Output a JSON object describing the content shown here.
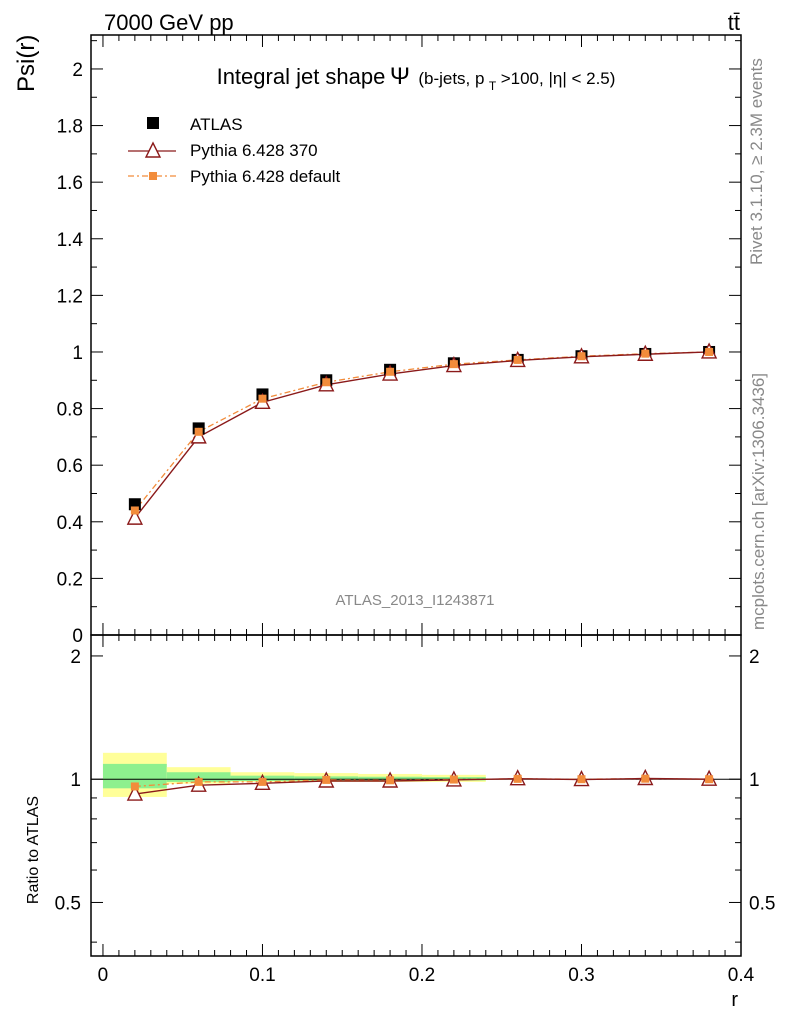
{
  "header": {
    "energy_label": "7000 GeV pp",
    "process_label": "tt̄",
    "rivet_label": "Rivet 3.1.10, ≥ 2.3M events",
    "mcplots_label": "mcplots.cern.ch [arXiv:1306.3436]",
    "analysis_id": "ATLAS_2013_I1243871"
  },
  "chart_data": [
    {
      "type": "scatter",
      "panel": "main",
      "title_main": "Integral jet shape",
      "title_symbol": "Ψ",
      "title_detail_a": "(b-jets, p",
      "title_detail_sub": "T",
      "title_detail_b": ">100, |η| < 2.5)",
      "ylabel": "Psi(r)",
      "xlim": [
        -0.0075,
        0.4
      ],
      "ylim": [
        0,
        2.12
      ],
      "x": [
        0.02,
        0.06,
        0.1,
        0.14,
        0.18,
        0.22,
        0.26,
        0.3,
        0.34,
        0.38
      ],
      "yticks": [
        0,
        0.2,
        0.4,
        0.6,
        0.8,
        1,
        1.2,
        1.4,
        1.6,
        1.8,
        2
      ],
      "ytick_labels": [
        "0",
        "0.2",
        "0.4",
        "0.6",
        "0.8",
        "1",
        "1.2",
        "1.4",
        "1.6",
        "1.8",
        "2"
      ],
      "legend_placement": "top-left",
      "series": [
        {
          "name": "ATLAS",
          "color": "#000000",
          "marker": "square",
          "values": [
            0.462,
            0.73,
            0.85,
            0.9,
            0.937,
            0.96,
            0.972,
            0.985,
            0.993,
            1.0
          ]
        },
        {
          "name": "Pythia 6.428 370",
          "color": "#8b1a1a",
          "marker": "open-triangle",
          "values": [
            0.413,
            0.7,
            0.822,
            0.884,
            0.922,
            0.952,
            0.97,
            0.983,
            0.992,
            1.0
          ]
        },
        {
          "name": "Pythia 6.428 default",
          "color": "#f28c3b",
          "marker": "small-square",
          "values": [
            0.44,
            0.718,
            0.835,
            0.893,
            0.93,
            0.957,
            0.972,
            0.985,
            0.994,
            1.0
          ]
        }
      ]
    },
    {
      "type": "line",
      "panel": "ratio",
      "ylabel": "Ratio to ATLAS",
      "xlabel": "r",
      "xlim": [
        -0.0075,
        0.4
      ],
      "ylim": [
        0.37,
        2.25
      ],
      "scale": "log",
      "x": [
        0.02,
        0.06,
        0.1,
        0.14,
        0.18,
        0.22,
        0.26,
        0.3,
        0.34,
        0.38
      ],
      "xticks": [
        0,
        0.1,
        0.2,
        0.3,
        0.4
      ],
      "xtick_labels": [
        "0",
        "0.1",
        "0.2",
        "0.3",
        "0.4"
      ],
      "yticks": [
        0.5,
        1,
        2
      ],
      "ytick_labels": [
        "0.5",
        "1",
        "2"
      ],
      "bands": [
        {
          "x0": 0.0,
          "x1": 0.04,
          "yellow": [
            0.905,
            1.16
          ],
          "green": [
            0.95,
            1.09
          ]
        },
        {
          "x0": 0.04,
          "x1": 0.08,
          "yellow": [
            0.975,
            1.07
          ],
          "green": [
            0.985,
            1.04
          ]
        },
        {
          "x0": 0.08,
          "x1": 0.12,
          "yellow": [
            0.985,
            1.04
          ],
          "green": [
            0.99,
            1.02
          ]
        },
        {
          "x0": 0.12,
          "x1": 0.16,
          "yellow": [
            0.985,
            1.035
          ],
          "green": [
            0.992,
            1.016
          ]
        },
        {
          "x0": 0.16,
          "x1": 0.2,
          "yellow": [
            0.985,
            1.03
          ],
          "green": [
            0.992,
            1.014
          ]
        },
        {
          "x0": 0.2,
          "x1": 0.24,
          "yellow": [
            0.985,
            1.025
          ],
          "green": [
            0.993,
            1.012
          ]
        }
      ],
      "series": [
        {
          "name": "Pythia 6.428 370",
          "color": "#8b1a1a",
          "values": [
            0.92,
            0.967,
            0.977,
            0.99,
            0.99,
            0.996,
            1.003,
            0.998,
            1.004,
            1.0
          ]
        },
        {
          "name": "Pythia 6.428 default",
          "color": "#f28c3b",
          "values": [
            0.96,
            0.985,
            0.985,
            0.996,
            0.994,
            0.998,
            1.002,
            1.0,
            1.003,
            1.0
          ]
        }
      ]
    }
  ]
}
